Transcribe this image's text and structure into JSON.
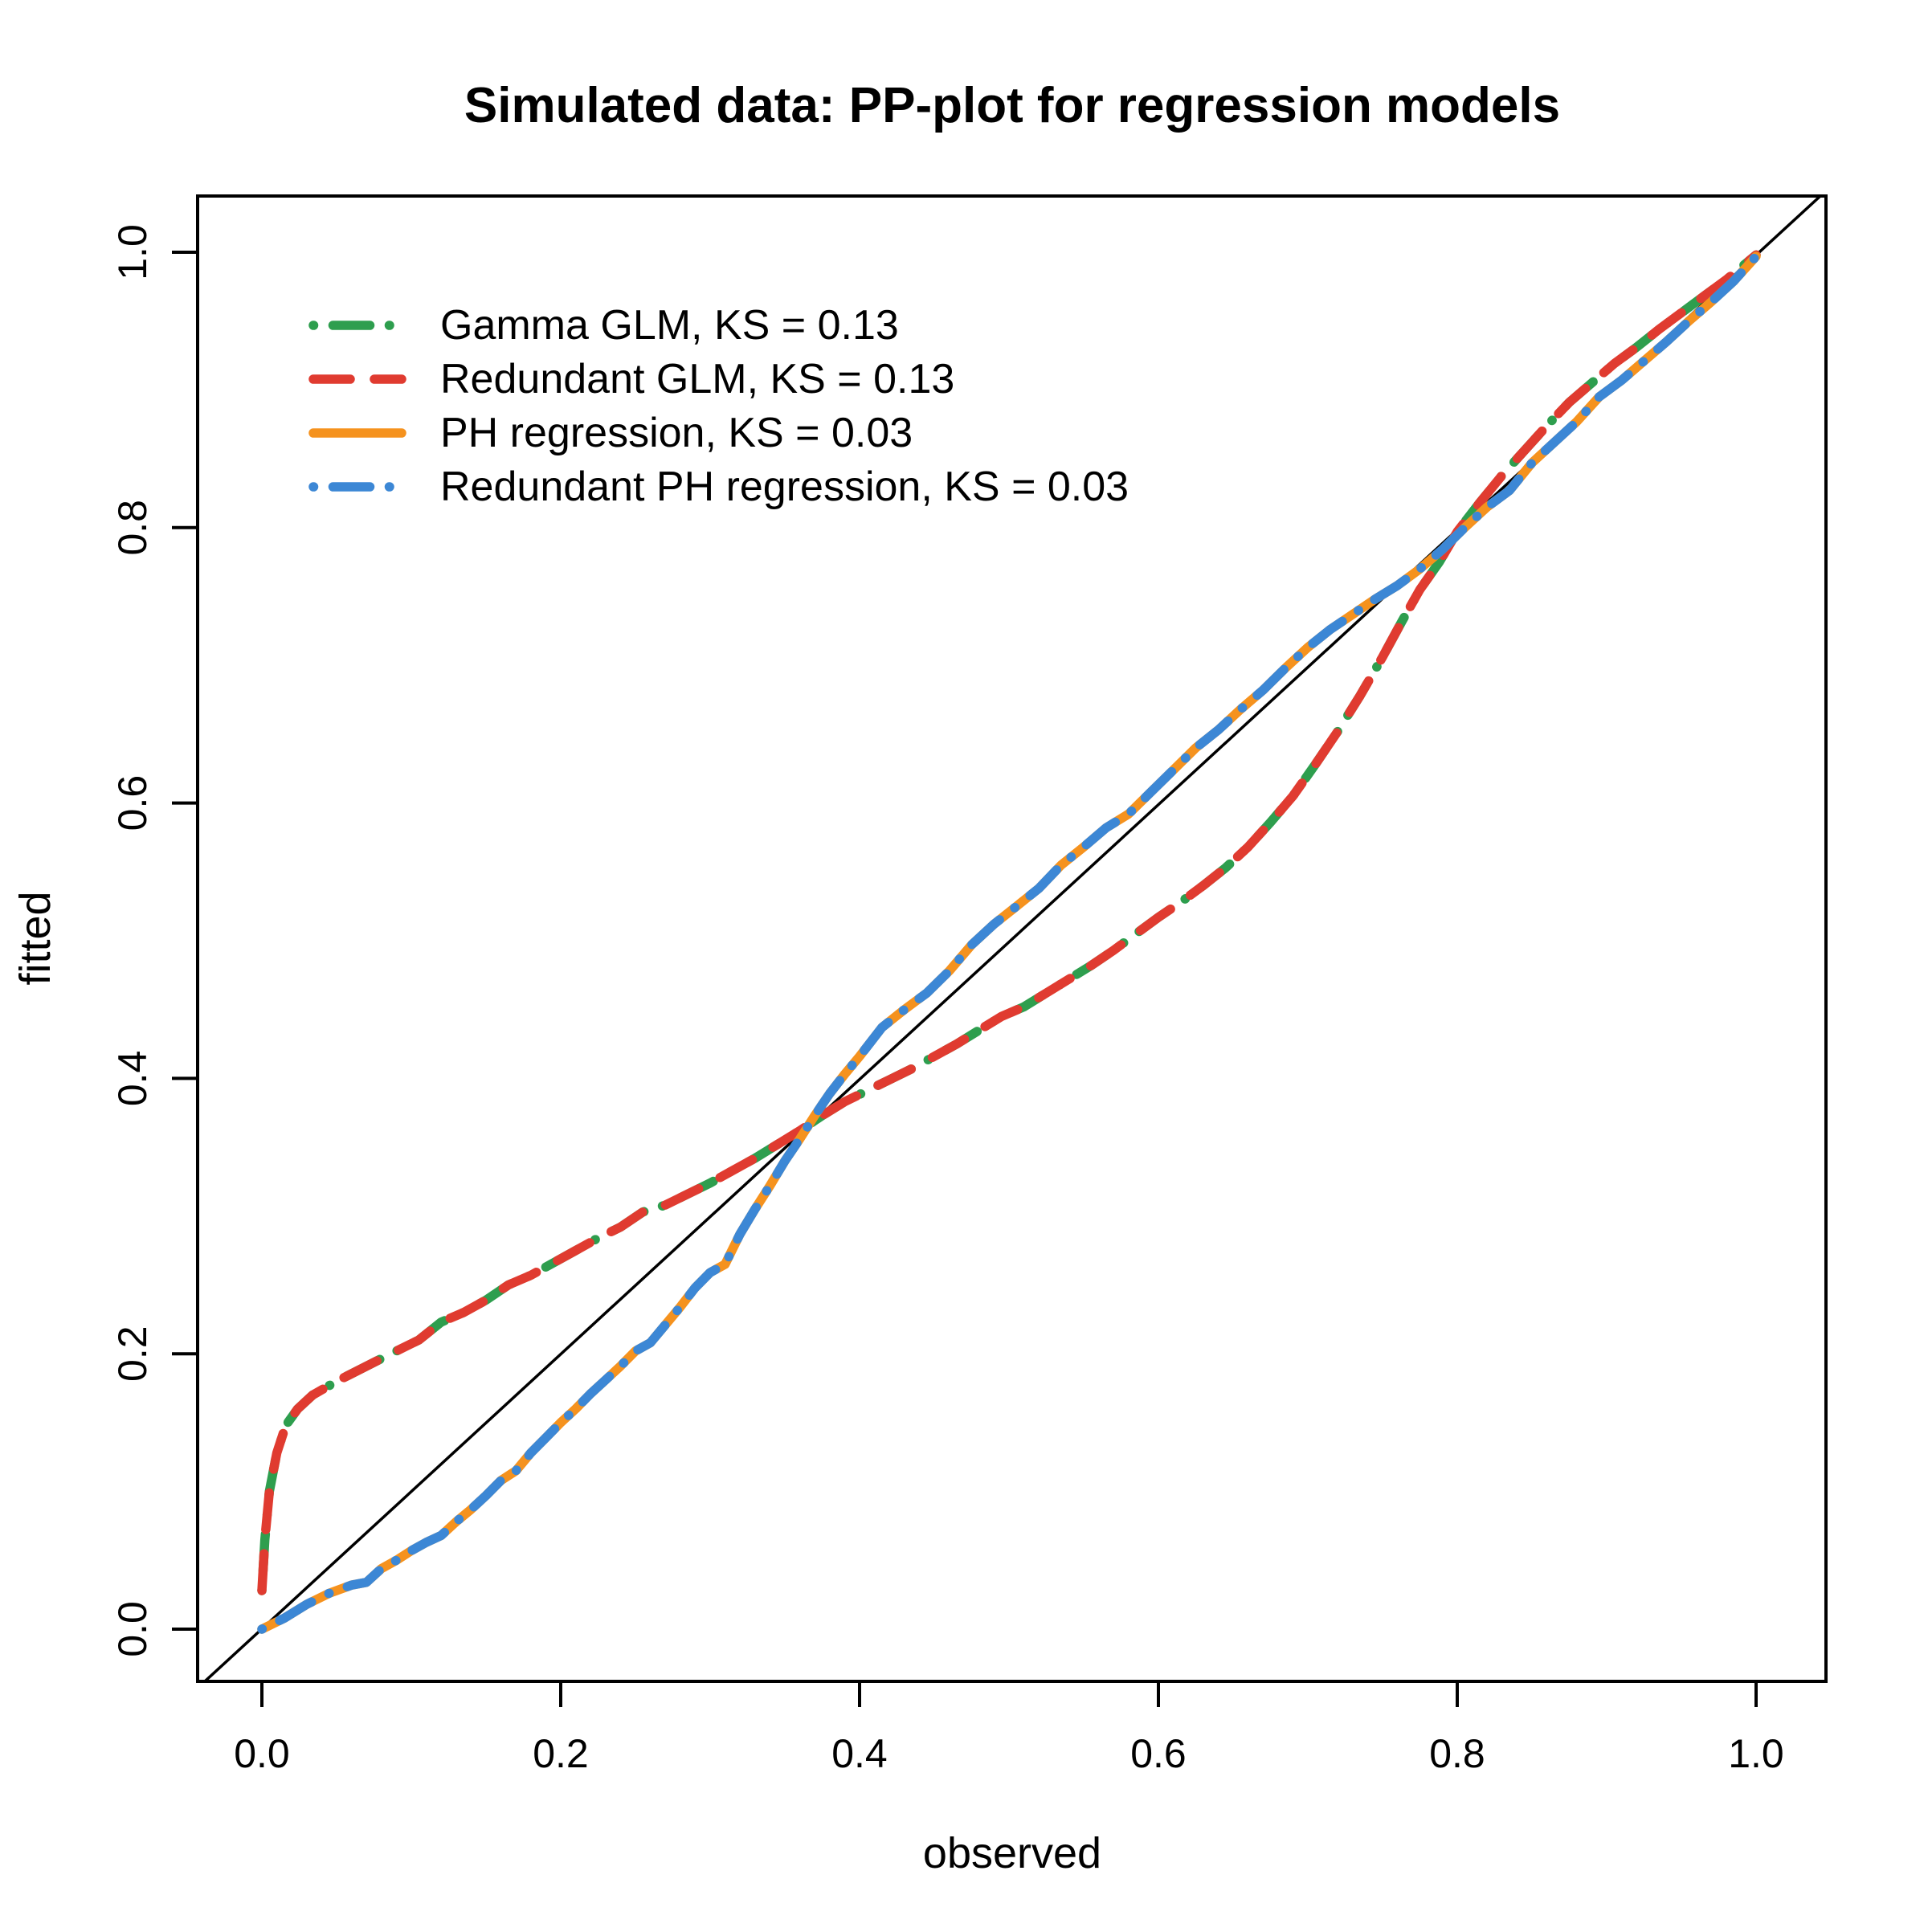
{
  "title": "Simulated data: PP-plot for regression models",
  "chart_data": {
    "type": "line",
    "title": "Simulated data: PP-plot for regression models",
    "xlabel": "observed",
    "ylabel": "fitted",
    "xlim": [
      0,
      1
    ],
    "ylim": [
      0,
      1
    ],
    "grid": "off",
    "legend_position": "top-left-inside",
    "xticks": {
      "values": [
        0.0,
        0.2,
        0.4,
        0.6,
        0.8,
        1.0
      ],
      "labels": [
        "0.0",
        "0.2",
        "0.4",
        "0.6",
        "0.8",
        "1.0"
      ]
    },
    "yticks": {
      "values": [
        0.0,
        0.2,
        0.4,
        0.6,
        0.8,
        1.0
      ],
      "labels": [
        "0.0",
        "0.2",
        "0.4",
        "0.6",
        "0.8",
        "1.0"
      ]
    },
    "reference_line": {
      "name": "identity-diagonal",
      "from": [
        0,
        0
      ],
      "to": [
        1,
        1
      ],
      "color": "#000000"
    },
    "series": [
      {
        "id": "gamma-glm",
        "name": "Gamma GLM, KS = 0.13",
        "ks": 0.13,
        "color": "#2E9E4E",
        "linetype": "dotdash",
        "curve": "glm"
      },
      {
        "id": "redundant-glm",
        "name": "Redundant GLM, KS = 0.13",
        "ks": 0.13,
        "color": "#E03B30",
        "linetype": "dashed",
        "curve": "glm"
      },
      {
        "id": "ph-regression",
        "name": "PH regression, KS = 0.03",
        "ks": 0.03,
        "color": "#F5921E",
        "linetype": "solid",
        "curve": "ph"
      },
      {
        "id": "redundant-ph-regression",
        "name": "Redundant PH regression, KS = 0.03",
        "ks": 0.03,
        "color": "#3C87D5",
        "linetype": "dotdash",
        "curve": "ph"
      }
    ],
    "curves": {
      "glm": [
        [
          0.0,
          0.028
        ],
        [
          0.002,
          0.065
        ],
        [
          0.005,
          0.1
        ],
        [
          0.01,
          0.128
        ],
        [
          0.016,
          0.148
        ],
        [
          0.024,
          0.16
        ],
        [
          0.034,
          0.17
        ],
        [
          0.05,
          0.18
        ],
        [
          0.07,
          0.191
        ],
        [
          0.09,
          0.202
        ],
        [
          0.105,
          0.21
        ],
        [
          0.12,
          0.223
        ],
        [
          0.135,
          0.23
        ],
        [
          0.15,
          0.239
        ],
        [
          0.165,
          0.25
        ],
        [
          0.18,
          0.257
        ],
        [
          0.195,
          0.266
        ],
        [
          0.21,
          0.275
        ],
        [
          0.225,
          0.284
        ],
        [
          0.24,
          0.292
        ],
        [
          0.255,
          0.303
        ],
        [
          0.27,
          0.308
        ],
        [
          0.285,
          0.316
        ],
        [
          0.3,
          0.324
        ],
        [
          0.315,
          0.333
        ],
        [
          0.33,
          0.342
        ],
        [
          0.345,
          0.352
        ],
        [
          0.36,
          0.362
        ],
        [
          0.375,
          0.373
        ],
        [
          0.39,
          0.383
        ],
        [
          0.405,
          0.391
        ],
        [
          0.42,
          0.399
        ],
        [
          0.435,
          0.407
        ],
        [
          0.45,
          0.416
        ],
        [
          0.465,
          0.425
        ],
        [
          0.48,
          0.435
        ],
        [
          0.495,
          0.445
        ],
        [
          0.51,
          0.452
        ],
        [
          0.525,
          0.462
        ],
        [
          0.54,
          0.472
        ],
        [
          0.555,
          0.482
        ],
        [
          0.57,
          0.493
        ],
        [
          0.585,
          0.505
        ],
        [
          0.6,
          0.517
        ],
        [
          0.615,
          0.528
        ],
        [
          0.63,
          0.54
        ],
        [
          0.645,
          0.553
        ],
        [
          0.66,
          0.568
        ],
        [
          0.675,
          0.586
        ],
        [
          0.69,
          0.605
        ],
        [
          0.705,
          0.628
        ],
        [
          0.72,
          0.652
        ],
        [
          0.735,
          0.678
        ],
        [
          0.75,
          0.706
        ],
        [
          0.763,
          0.732
        ],
        [
          0.775,
          0.755
        ],
        [
          0.788,
          0.775
        ],
        [
          0.8,
          0.797
        ],
        [
          0.815,
          0.818
        ],
        [
          0.83,
          0.838
        ],
        [
          0.845,
          0.856
        ],
        [
          0.86,
          0.874
        ],
        [
          0.875,
          0.891
        ],
        [
          0.89,
          0.905
        ],
        [
          0.905,
          0.919
        ],
        [
          0.92,
          0.931
        ],
        [
          0.935,
          0.944
        ],
        [
          0.95,
          0.956
        ],
        [
          0.965,
          0.968
        ],
        [
          0.98,
          0.98
        ],
        [
          1.0,
          0.998
        ]
      ],
      "ph": [
        [
          0.0,
          0.0
        ],
        [
          0.015,
          0.008
        ],
        [
          0.03,
          0.018
        ],
        [
          0.045,
          0.026
        ],
        [
          0.06,
          0.032
        ],
        [
          0.07,
          0.034
        ],
        [
          0.08,
          0.044
        ],
        [
          0.09,
          0.05
        ],
        [
          0.1,
          0.057
        ],
        [
          0.11,
          0.063
        ],
        [
          0.12,
          0.068
        ],
        [
          0.13,
          0.078
        ],
        [
          0.14,
          0.087
        ],
        [
          0.15,
          0.097
        ],
        [
          0.16,
          0.108
        ],
        [
          0.17,
          0.115
        ],
        [
          0.18,
          0.128
        ],
        [
          0.19,
          0.139
        ],
        [
          0.2,
          0.15
        ],
        [
          0.21,
          0.16
        ],
        [
          0.22,
          0.171
        ],
        [
          0.23,
          0.181
        ],
        [
          0.24,
          0.191
        ],
        [
          0.25,
          0.202
        ],
        [
          0.26,
          0.208
        ],
        [
          0.27,
          0.221
        ],
        [
          0.28,
          0.234
        ],
        [
          0.29,
          0.248
        ],
        [
          0.3,
          0.259
        ],
        [
          0.31,
          0.265
        ],
        [
          0.32,
          0.287
        ],
        [
          0.33,
          0.305
        ],
        [
          0.34,
          0.322
        ],
        [
          0.35,
          0.34
        ],
        [
          0.36,
          0.356
        ],
        [
          0.37,
          0.373
        ],
        [
          0.38,
          0.389
        ],
        [
          0.39,
          0.403
        ],
        [
          0.4,
          0.416
        ],
        [
          0.415,
          0.437
        ],
        [
          0.43,
          0.45
        ],
        [
          0.445,
          0.462
        ],
        [
          0.46,
          0.478
        ],
        [
          0.475,
          0.497
        ],
        [
          0.49,
          0.512
        ],
        [
          0.505,
          0.525
        ],
        [
          0.52,
          0.538
        ],
        [
          0.535,
          0.555
        ],
        [
          0.55,
          0.568
        ],
        [
          0.565,
          0.582
        ],
        [
          0.58,
          0.592
        ],
        [
          0.595,
          0.608
        ],
        [
          0.61,
          0.624
        ],
        [
          0.625,
          0.64
        ],
        [
          0.64,
          0.653
        ],
        [
          0.655,
          0.668
        ],
        [
          0.67,
          0.682
        ],
        [
          0.685,
          0.698
        ],
        [
          0.7,
          0.713
        ],
        [
          0.715,
          0.726
        ],
        [
          0.73,
          0.737
        ],
        [
          0.745,
          0.748
        ],
        [
          0.76,
          0.758
        ],
        [
          0.775,
          0.77
        ],
        [
          0.79,
          0.784
        ],
        [
          0.805,
          0.8
        ],
        [
          0.82,
          0.815
        ],
        [
          0.835,
          0.827
        ],
        [
          0.85,
          0.847
        ],
        [
          0.865,
          0.862
        ],
        [
          0.88,
          0.877
        ],
        [
          0.895,
          0.895
        ],
        [
          0.91,
          0.907
        ],
        [
          0.925,
          0.921
        ],
        [
          0.94,
          0.935
        ],
        [
          0.955,
          0.95
        ],
        [
          0.97,
          0.964
        ],
        [
          0.985,
          0.979
        ],
        [
          1.0,
          0.997
        ]
      ]
    }
  }
}
